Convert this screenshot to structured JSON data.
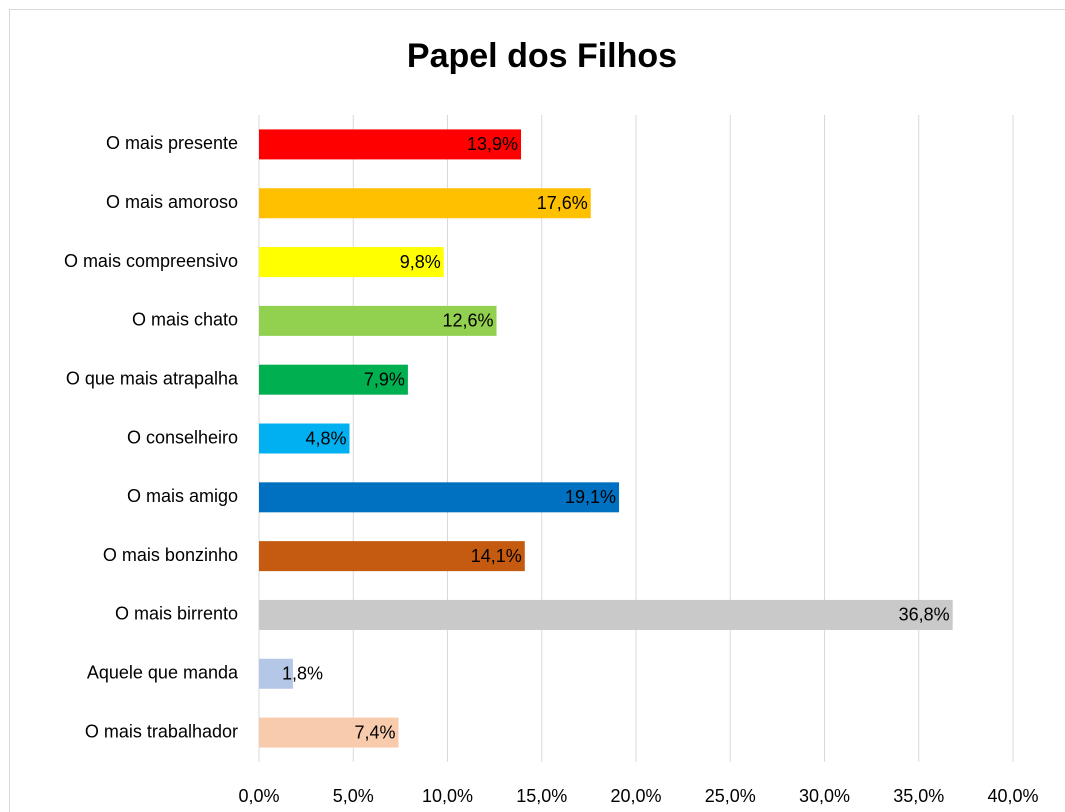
{
  "chart_data": {
    "type": "barh",
    "title": "Papel dos Filhos",
    "categories": [
      "O mais presente",
      "O mais amoroso",
      "O mais compreensivo",
      "O mais chato",
      "O que mais atrapalha",
      "O conselheiro",
      "O mais amigo",
      "O mais bonzinho",
      "O mais birrento",
      "Aquele que manda",
      "O mais trabalhador"
    ],
    "values": [
      13.9,
      17.6,
      9.8,
      12.6,
      7.9,
      4.8,
      19.1,
      14.1,
      36.8,
      1.8,
      7.4
    ],
    "value_labels": [
      "13,9%",
      "17,6%",
      "9,8%",
      "12,6%",
      "7,9%",
      "4,8%",
      "19,1%",
      "14,1%",
      "36,8%",
      "1,8%",
      "7,4%"
    ],
    "colors": [
      "#ff0000",
      "#ffc000",
      "#ffff00",
      "#92d050",
      "#00b050",
      "#00b0f0",
      "#0070c0",
      "#c55a11",
      "#c9c9c9",
      "#b4c7e7",
      "#f8cbad"
    ],
    "xlim": [
      0,
      40
    ],
    "xticks": [
      {
        "value": 0,
        "label": "0,0%"
      },
      {
        "value": 5,
        "label": "5,0%"
      },
      {
        "value": 10,
        "label": "10,0%"
      },
      {
        "value": 15,
        "label": "15,0%"
      },
      {
        "value": 20,
        "label": "20,0%"
      },
      {
        "value": 25,
        "label": "25,0%"
      },
      {
        "value": 30,
        "label": "30,0%"
      },
      {
        "value": 35,
        "label": "35,0%"
      },
      {
        "value": 40,
        "label": "40,0%"
      }
    ],
    "grid": true
  }
}
